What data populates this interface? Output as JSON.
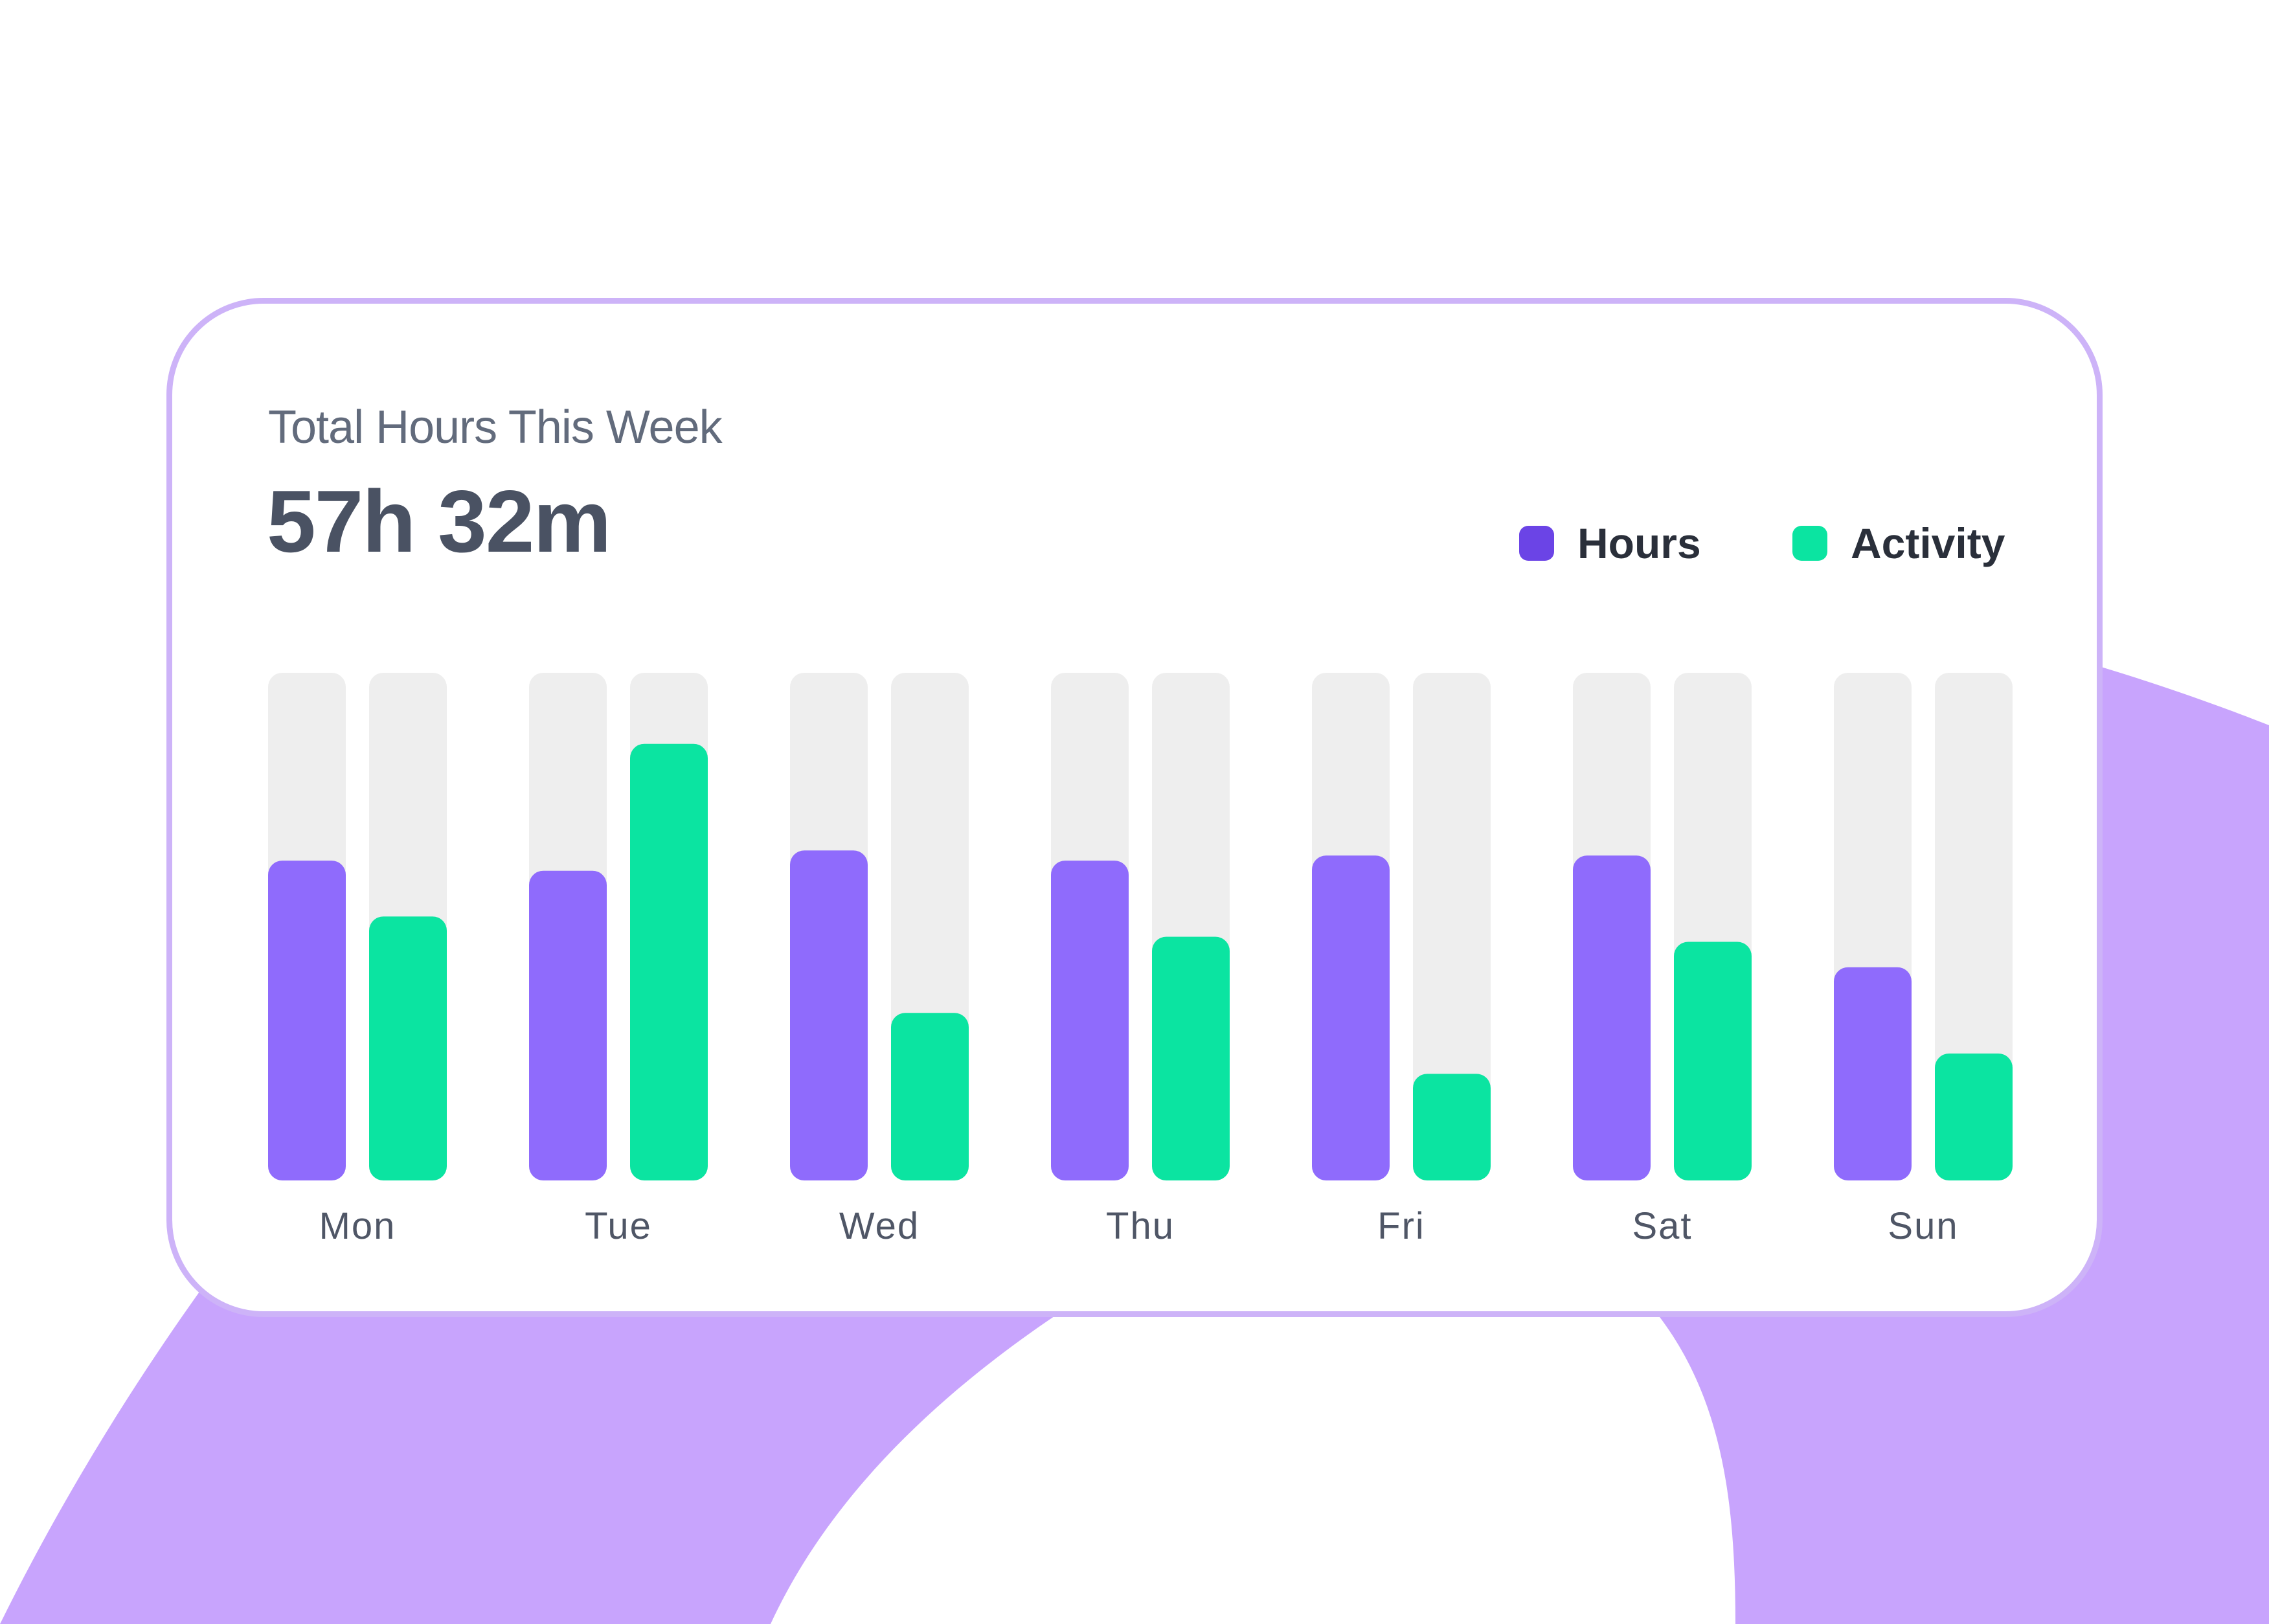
{
  "colors": {
    "background_shape": "#C8A4FD",
    "card_border": "#CDB3F8",
    "hours": "#8F6BFC",
    "hours_legend": "#6B44E6",
    "activity": "#0BE4A1",
    "track": "#EEEEEE",
    "title_text": "#626B7C",
    "total_text": "#4A5263",
    "axis_text": "#4F5666"
  },
  "card": {
    "title": "Total Hours This Week",
    "total": "57h 32m"
  },
  "legend": {
    "items": [
      {
        "label": "Hours",
        "color": "#6B44E6"
      },
      {
        "label": "Activity",
        "color": "#0BE4A1"
      }
    ]
  },
  "chart_data": {
    "type": "bar",
    "title": "Total Hours This Week",
    "subtitle": "57h 32m",
    "xlabel": "",
    "ylabel": "",
    "ylim": [
      0,
      100
    ],
    "grid": false,
    "legend_position": "top-right",
    "categories": [
      "Mon",
      "Tue",
      "Wed",
      "Thu",
      "Fri",
      "Sat",
      "Sun"
    ],
    "series": [
      {
        "name": "Hours",
        "color": "#8F6BFC",
        "values": [
          63,
          61,
          65,
          63,
          64,
          64,
          42
        ]
      },
      {
        "name": "Activity",
        "color": "#0BE4A1",
        "values": [
          52,
          86,
          33,
          48,
          21,
          47,
          25
        ]
      }
    ]
  }
}
